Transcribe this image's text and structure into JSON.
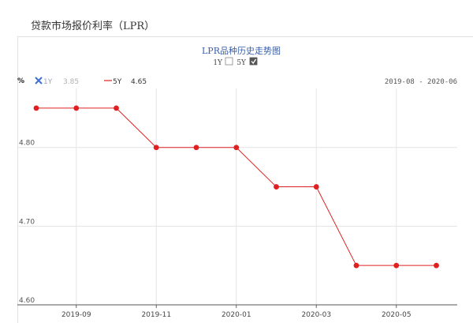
{
  "page": {
    "title": "贷款市场报价利率（LPR）"
  },
  "chart_data": {
    "type": "line",
    "title": "LPR品种历史走势图",
    "toggles": [
      {
        "label": "1Y",
        "checked": false
      },
      {
        "label": "5Y",
        "checked": true
      }
    ],
    "y_unit": "%",
    "legend": [
      {
        "name": "1Y",
        "value": "3.85",
        "active": false,
        "color": "#9aa7c4"
      },
      {
        "name": "5Y",
        "value": "4.65",
        "active": true,
        "color": "#e02020"
      }
    ],
    "date_range": "2019-08 - 2020-06",
    "x": [
      "2019-08",
      "2019-09",
      "2019-10",
      "2019-11",
      "2019-12",
      "2020-01",
      "2020-02",
      "2020-03",
      "2020-04",
      "2020-05",
      "2020-06"
    ],
    "x_ticks": [
      "2019-09",
      "2019-11",
      "2020-01",
      "2020-03",
      "2020-05"
    ],
    "series": [
      {
        "name": "5Y",
        "color": "#e02020",
        "values": [
          4.85,
          4.85,
          4.85,
          4.8,
          4.8,
          4.8,
          4.75,
          4.75,
          4.65,
          4.65,
          4.65
        ]
      }
    ],
    "y_ticks": [
      "4.80",
      "4.70",
      "4.60"
    ],
    "ylim": [
      4.6,
      4.875
    ],
    "grid": true
  }
}
